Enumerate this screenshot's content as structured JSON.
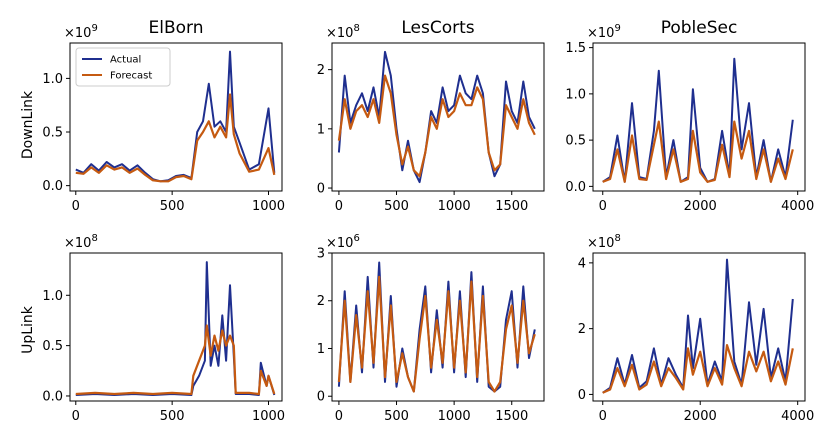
{
  "colors": {
    "actual": "#1f2f8f",
    "forecast": "#c55a11"
  },
  "row_labels": [
    "DownLink",
    "UpLink"
  ],
  "legend": {
    "actual_label": "Actual",
    "forecast_label": "Forecast"
  },
  "chart_data": [
    {
      "id": "elborn-downlink",
      "type": "line",
      "title": "ElBorn",
      "ylabel": "DownLink",
      "multiplier": "×10",
      "exponent": "9",
      "xlim": [
        -30,
        1070
      ],
      "ylim": [
        -0.05,
        1.33
      ],
      "xticks": [
        0,
        500,
        1000
      ],
      "xtick_labels": [
        "0",
        "500",
        "1000"
      ],
      "yticks": [
        0,
        0.5,
        1.0
      ],
      "ytick_labels": [
        "0.0",
        "0.5",
        "1.0"
      ],
      "series": [
        {
          "name": "Actual",
          "x": [
            0,
            40,
            80,
            120,
            160,
            200,
            240,
            280,
            320,
            360,
            400,
            440,
            480,
            520,
            560,
            600,
            630,
            660,
            690,
            720,
            750,
            780,
            800,
            820,
            850,
            900,
            950,
            1000,
            1030
          ],
          "y": [
            0.15,
            0.12,
            0.2,
            0.14,
            0.22,
            0.17,
            0.2,
            0.14,
            0.19,
            0.12,
            0.06,
            0.04,
            0.05,
            0.09,
            0.1,
            0.07,
            0.5,
            0.6,
            0.95,
            0.55,
            0.6,
            0.5,
            1.25,
            0.55,
            0.4,
            0.15,
            0.2,
            0.72,
            0.12
          ]
        },
        {
          "name": "Forecast",
          "x": [
            0,
            40,
            80,
            120,
            160,
            200,
            240,
            280,
            320,
            360,
            400,
            440,
            480,
            520,
            560,
            600,
            630,
            660,
            690,
            720,
            750,
            780,
            800,
            820,
            850,
            900,
            950,
            1000,
            1030
          ],
          "y": [
            0.12,
            0.11,
            0.17,
            0.12,
            0.19,
            0.15,
            0.17,
            0.12,
            0.16,
            0.1,
            0.05,
            0.04,
            0.04,
            0.08,
            0.09,
            0.06,
            0.42,
            0.5,
            0.6,
            0.45,
            0.55,
            0.45,
            0.85,
            0.48,
            0.3,
            0.13,
            0.15,
            0.35,
            0.1
          ]
        }
      ]
    },
    {
      "id": "lescorts-downlink",
      "type": "line",
      "title": "LesCorts",
      "ylabel": "",
      "multiplier": "×10",
      "exponent": "8",
      "xlim": [
        -60,
        1780
      ],
      "ylim": [
        -0.05,
        2.45
      ],
      "xticks": [
        0,
        500,
        1000,
        1500
      ],
      "xtick_labels": [
        "0",
        "500",
        "1000",
        "1500"
      ],
      "yticks": [
        0,
        1,
        2
      ],
      "ytick_labels": [
        "0",
        "1",
        "2"
      ],
      "series": [
        {
          "name": "Actual",
          "x": [
            0,
            50,
            100,
            150,
            200,
            250,
            300,
            350,
            400,
            450,
            500,
            550,
            600,
            650,
            700,
            750,
            800,
            850,
            900,
            950,
            1000,
            1050,
            1100,
            1150,
            1200,
            1250,
            1300,
            1350,
            1400,
            1450,
            1500,
            1550,
            1600,
            1650,
            1700
          ],
          "y": [
            0.6,
            1.9,
            1.1,
            1.4,
            1.6,
            1.3,
            1.7,
            1.2,
            2.3,
            1.9,
            1.0,
            0.3,
            0.8,
            0.3,
            0.1,
            0.6,
            1.3,
            1.1,
            1.7,
            1.3,
            1.4,
            1.9,
            1.6,
            1.5,
            1.9,
            1.6,
            0.6,
            0.2,
            0.4,
            1.8,
            1.3,
            1.1,
            1.8,
            1.2,
            1.0
          ]
        },
        {
          "name": "Forecast",
          "x": [
            0,
            50,
            100,
            150,
            200,
            250,
            300,
            350,
            400,
            450,
            500,
            550,
            600,
            650,
            700,
            750,
            800,
            850,
            900,
            950,
            1000,
            1050,
            1100,
            1150,
            1200,
            1250,
            1300,
            1350,
            1400,
            1450,
            1500,
            1550,
            1600,
            1650,
            1700
          ],
          "y": [
            0.8,
            1.5,
            1.0,
            1.3,
            1.4,
            1.2,
            1.5,
            1.1,
            1.9,
            1.6,
            0.9,
            0.4,
            0.7,
            0.3,
            0.2,
            0.6,
            1.2,
            1.0,
            1.5,
            1.2,
            1.3,
            1.6,
            1.4,
            1.4,
            1.7,
            1.5,
            0.6,
            0.3,
            0.4,
            1.4,
            1.2,
            1.0,
            1.5,
            1.1,
            0.9
          ]
        }
      ]
    },
    {
      "id": "poblesec-downlink",
      "type": "line",
      "title": "PobleSec",
      "ylabel": "",
      "multiplier": "×10",
      "exponent": "9",
      "xlim": [
        -200,
        4150
      ],
      "ylim": [
        -0.05,
        1.55
      ],
      "xticks": [
        0,
        2000,
        4000
      ],
      "xtick_labels": [
        "0",
        "2000",
        "4000"
      ],
      "yticks": [
        0,
        0.5,
        1.0,
        1.5
      ],
      "ytick_labels": [
        "0.0",
        "0.5",
        "1.0",
        "1.5"
      ],
      "series": [
        {
          "name": "Actual",
          "x": [
            0,
            150,
            300,
            450,
            600,
            750,
            900,
            1050,
            1150,
            1300,
            1450,
            1600,
            1750,
            1850,
            2000,
            2150,
            2300,
            2450,
            2600,
            2700,
            2850,
            3000,
            3150,
            3300,
            3450,
            3600,
            3750,
            3900
          ],
          "y": [
            0.05,
            0.1,
            0.55,
            0.05,
            0.9,
            0.1,
            0.08,
            0.6,
            1.25,
            0.1,
            0.5,
            0.05,
            0.1,
            1.05,
            0.2,
            0.05,
            0.08,
            0.6,
            0.12,
            1.38,
            0.4,
            0.9,
            0.1,
            0.5,
            0.05,
            0.4,
            0.1,
            0.72
          ]
        },
        {
          "name": "Forecast",
          "x": [
            0,
            150,
            300,
            450,
            600,
            750,
            900,
            1050,
            1150,
            1300,
            1450,
            1600,
            1750,
            1850,
            2000,
            2150,
            2300,
            2450,
            2600,
            2700,
            2850,
            3000,
            3150,
            3300,
            3450,
            3600,
            3750,
            3900
          ],
          "y": [
            0.05,
            0.08,
            0.4,
            0.05,
            0.55,
            0.08,
            0.07,
            0.45,
            0.7,
            0.08,
            0.4,
            0.05,
            0.08,
            0.6,
            0.15,
            0.05,
            0.07,
            0.45,
            0.1,
            0.7,
            0.3,
            0.6,
            0.08,
            0.4,
            0.05,
            0.3,
            0.08,
            0.4
          ]
        }
      ]
    },
    {
      "id": "elborn-uplink",
      "type": "line",
      "title": "",
      "ylabel": "UpLink",
      "multiplier": "×10",
      "exponent": "8",
      "xlim": [
        -30,
        1070
      ],
      "ylim": [
        -0.05,
        1.42
      ],
      "xticks": [
        0,
        500,
        1000
      ],
      "xtick_labels": [
        "0",
        "500",
        "1000"
      ],
      "yticks": [
        0,
        0.5,
        1.0
      ],
      "ytick_labels": [
        "0.0",
        "0.5",
        "1.0"
      ],
      "series": [
        {
          "name": "Actual",
          "x": [
            0,
            100,
            200,
            300,
            400,
            500,
            600,
            610,
            640,
            670,
            680,
            700,
            720,
            740,
            760,
            780,
            800,
            820,
            830,
            900,
            950,
            960,
            990,
            1000,
            1030
          ],
          "y": [
            0.01,
            0.02,
            0.01,
            0.02,
            0.01,
            0.02,
            0.01,
            0.1,
            0.2,
            0.35,
            1.33,
            0.3,
            0.5,
            0.3,
            0.8,
            0.35,
            1.1,
            0.4,
            0.02,
            0.02,
            0.01,
            0.33,
            0.1,
            0.2,
            0.01
          ]
        },
        {
          "name": "Forecast",
          "x": [
            0,
            100,
            200,
            300,
            400,
            500,
            600,
            610,
            640,
            670,
            680,
            700,
            720,
            740,
            760,
            780,
            800,
            820,
            830,
            900,
            950,
            960,
            990,
            1000,
            1030
          ],
          "y": [
            0.02,
            0.03,
            0.02,
            0.03,
            0.02,
            0.03,
            0.02,
            0.2,
            0.35,
            0.5,
            0.7,
            0.4,
            0.6,
            0.45,
            0.65,
            0.5,
            0.6,
            0.5,
            0.03,
            0.03,
            0.02,
            0.25,
            0.1,
            0.2,
            0.02
          ]
        }
      ]
    },
    {
      "id": "lescorts-uplink",
      "type": "line",
      "title": "",
      "ylabel": "",
      "multiplier": "×10",
      "exponent": "6",
      "xlim": [
        -60,
        1780
      ],
      "ylim": [
        -0.1,
        3.0
      ],
      "xticks": [
        0,
        500,
        1000,
        1500
      ],
      "xtick_labels": [
        "0",
        "500",
        "1000",
        "1500"
      ],
      "yticks": [
        0,
        1,
        2,
        3
      ],
      "ytick_labels": [
        "0",
        "1",
        "2",
        "3"
      ],
      "series": [
        {
          "name": "Actual",
          "x": [
            0,
            50,
            100,
            150,
            200,
            250,
            300,
            350,
            400,
            450,
            500,
            550,
            600,
            650,
            700,
            750,
            800,
            850,
            900,
            950,
            1000,
            1050,
            1100,
            1150,
            1200,
            1250,
            1300,
            1350,
            1400,
            1450,
            1500,
            1550,
            1600,
            1650,
            1700
          ],
          "y": [
            0.2,
            2.2,
            0.3,
            1.9,
            0.5,
            2.5,
            0.6,
            2.8,
            0.3,
            2.1,
            0.2,
            1.0,
            0.4,
            0.1,
            1.4,
            2.3,
            0.5,
            1.8,
            0.6,
            2.4,
            0.5,
            2.2,
            0.4,
            2.6,
            0.3,
            2.3,
            0.2,
            0.1,
            0.2,
            1.6,
            2.2,
            0.6,
            2.3,
            0.8,
            1.4
          ]
        },
        {
          "name": "Forecast",
          "x": [
            0,
            50,
            100,
            150,
            200,
            250,
            300,
            350,
            400,
            450,
            500,
            550,
            600,
            650,
            700,
            750,
            800,
            850,
            900,
            950,
            1000,
            1050,
            1100,
            1150,
            1200,
            1250,
            1300,
            1350,
            1400,
            1450,
            1500,
            1550,
            1600,
            1650,
            1700
          ],
          "y": [
            0.3,
            2.0,
            0.3,
            1.7,
            0.6,
            2.2,
            0.7,
            2.5,
            0.4,
            1.9,
            0.3,
            0.9,
            0.4,
            0.1,
            1.2,
            2.1,
            0.6,
            1.6,
            0.7,
            2.2,
            0.6,
            2.0,
            0.5,
            2.4,
            0.4,
            2.1,
            0.3,
            0.1,
            0.3,
            1.4,
            1.9,
            0.7,
            2.0,
            0.9,
            1.3
          ]
        }
      ]
    },
    {
      "id": "poblesec-uplink",
      "type": "line",
      "title": "",
      "ylabel": "",
      "multiplier": "×10",
      "exponent": "8",
      "xlim": [
        -200,
        4150
      ],
      "ylim": [
        -0.2,
        4.3
      ],
      "xticks": [
        0,
        2000,
        4000
      ],
      "xtick_labels": [
        "0",
        "2000",
        "4000"
      ],
      "yticks": [
        0,
        2,
        4
      ],
      "ytick_labels": [
        "0",
        "2",
        "4"
      ],
      "series": [
        {
          "name": "Actual",
          "x": [
            0,
            150,
            300,
            450,
            600,
            750,
            900,
            1050,
            1200,
            1350,
            1500,
            1650,
            1750,
            1850,
            2000,
            2150,
            2300,
            2450,
            2550,
            2700,
            2850,
            3000,
            3150,
            3300,
            3450,
            3600,
            3750,
            3900
          ],
          "y": [
            0.05,
            0.2,
            1.1,
            0.3,
            1.2,
            0.2,
            0.4,
            1.4,
            0.3,
            1.1,
            0.6,
            0.2,
            2.4,
            0.8,
            2.3,
            0.3,
            1.0,
            0.4,
            4.1,
            1.0,
            0.3,
            2.8,
            0.9,
            2.6,
            0.5,
            1.4,
            0.4,
            2.9
          ]
        },
        {
          "name": "Forecast",
          "x": [
            0,
            150,
            300,
            450,
            600,
            750,
            900,
            1050,
            1200,
            1350,
            1500,
            1650,
            1750,
            1850,
            2000,
            2150,
            2300,
            2450,
            2550,
            2700,
            2850,
            3000,
            3150,
            3300,
            3450,
            3600,
            3750,
            3900
          ],
          "y": [
            0.05,
            0.15,
            0.8,
            0.25,
            0.9,
            0.15,
            0.3,
            1.0,
            0.25,
            0.8,
            0.5,
            0.15,
            1.4,
            0.6,
            1.3,
            0.25,
            0.8,
            0.3,
            1.5,
            0.8,
            0.25,
            1.3,
            0.7,
            1.3,
            0.4,
            1.0,
            0.3,
            1.4
          ]
        }
      ]
    }
  ]
}
